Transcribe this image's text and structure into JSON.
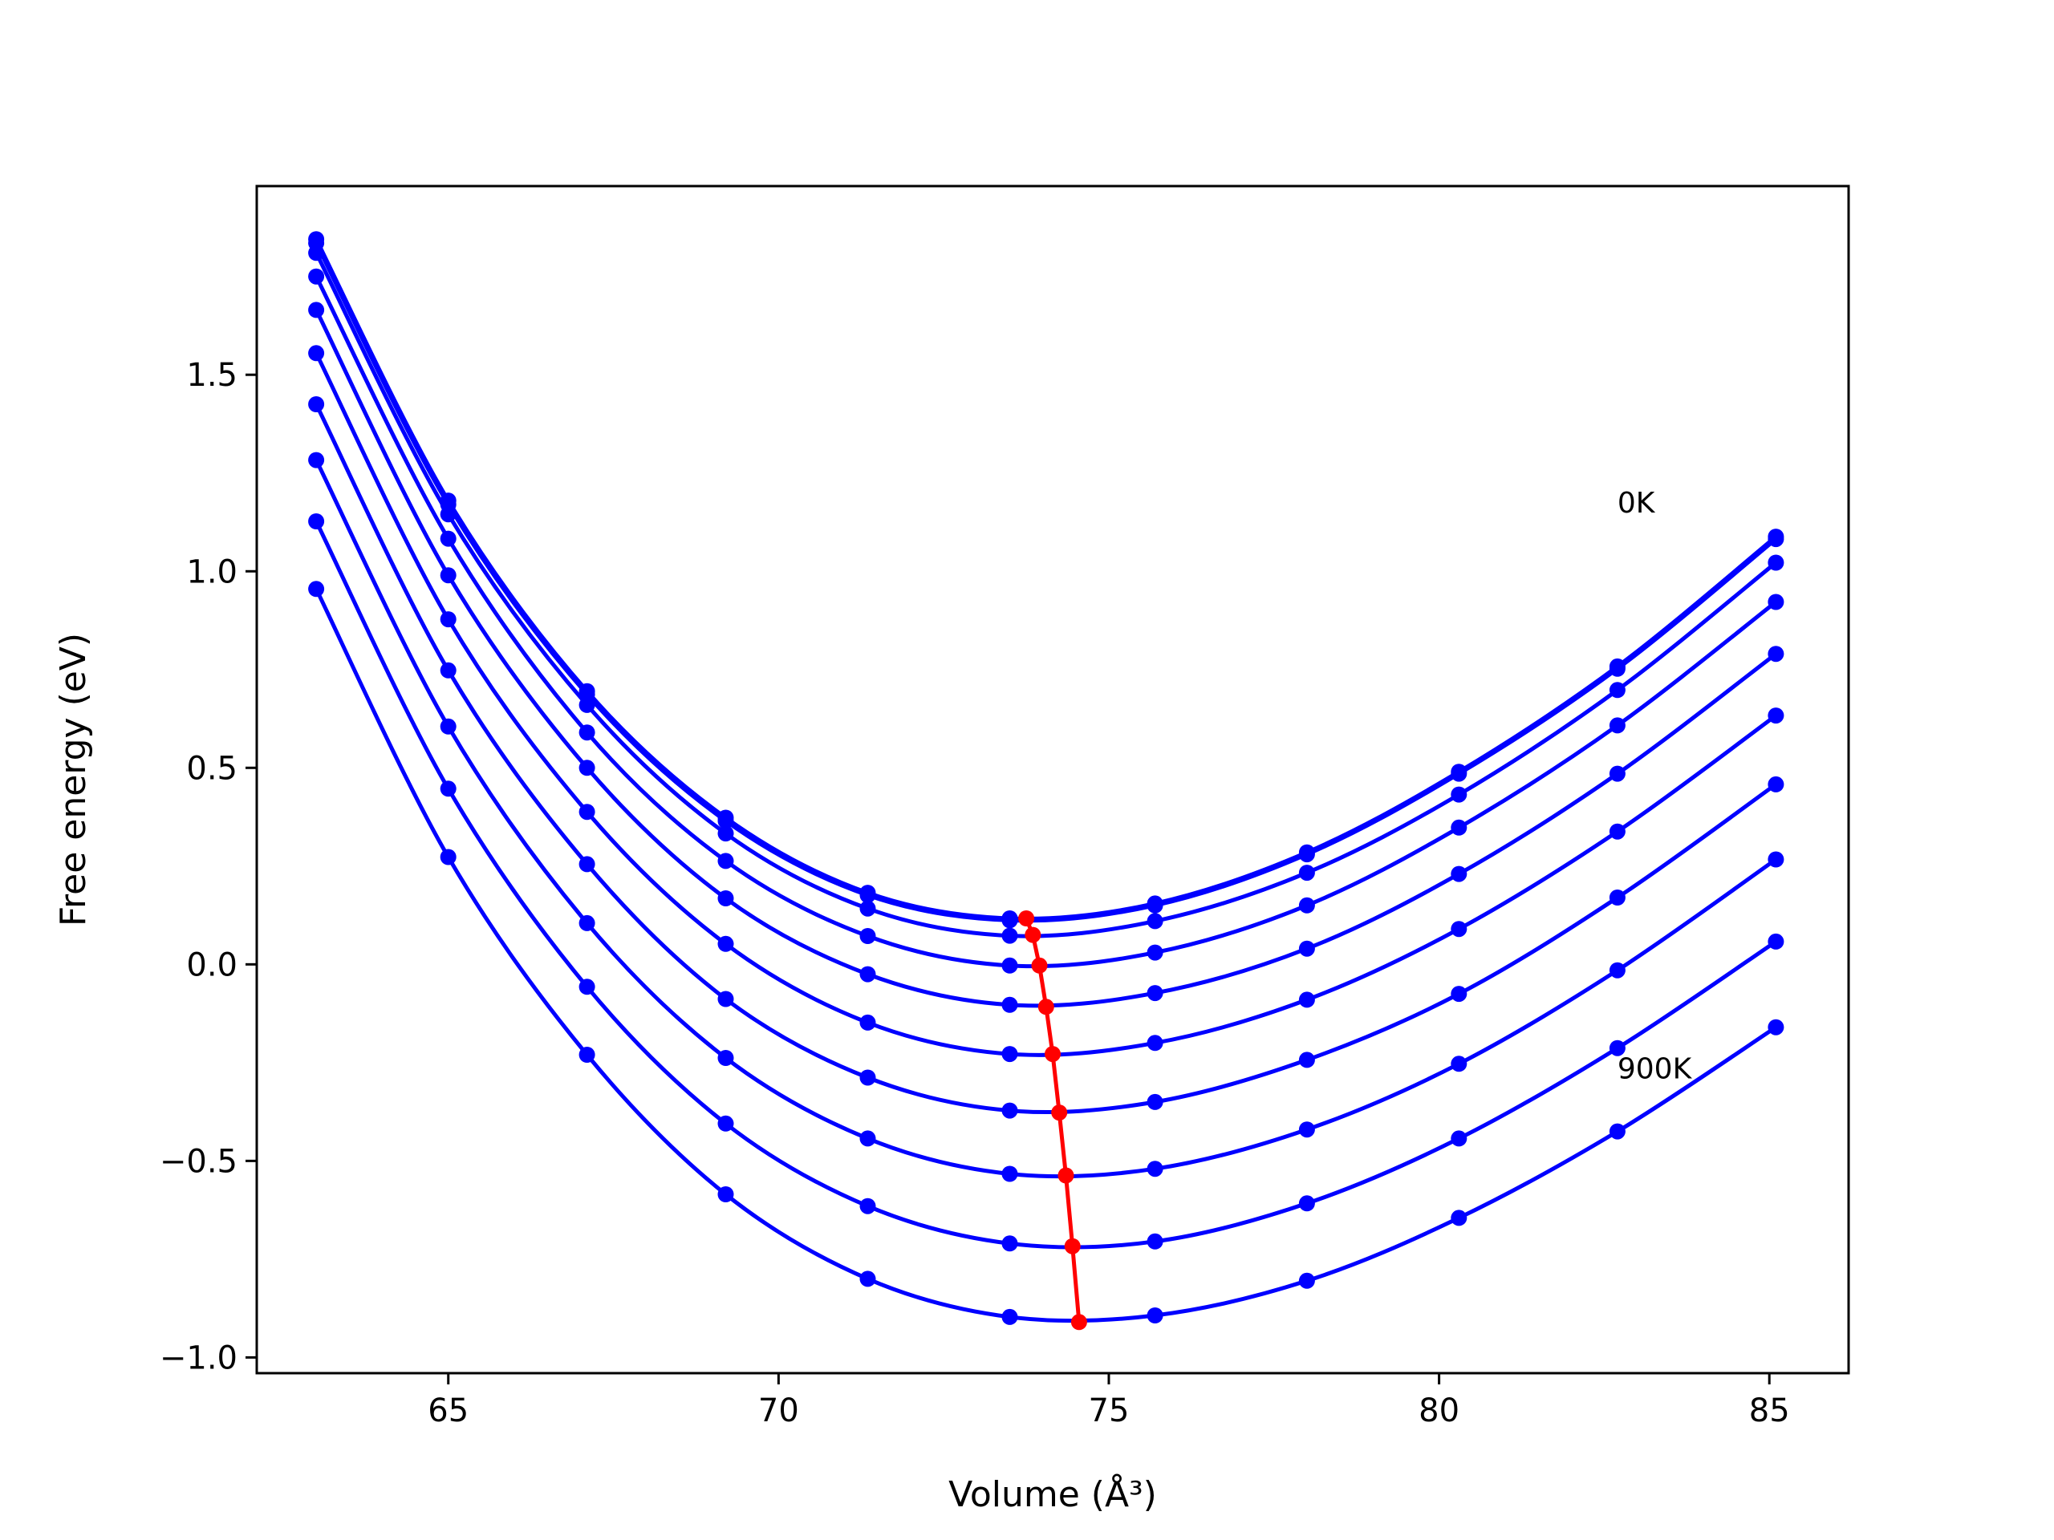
{
  "chart_data": {
    "type": "line",
    "xlabel": "Volume (Å³)",
    "ylabel": "Free energy (eV)",
    "xlim": [
      62.1,
      86.2
    ],
    "ylim": [
      -1.04,
      1.98
    ],
    "xticks": [
      65,
      70,
      75,
      80,
      85
    ],
    "yticks": [
      {
        "value": -1.0,
        "label": "−1.0"
      },
      {
        "value": -0.5,
        "label": "−0.5"
      },
      {
        "value": 0.0,
        "label": "0.0"
      },
      {
        "value": 0.5,
        "label": "0.5"
      },
      {
        "value": 1.0,
        "label": "1.0"
      },
      {
        "value": 1.5,
        "label": "1.5"
      }
    ],
    "grid": false,
    "legend": "none",
    "colors": {
      "curves": "#0000ff",
      "minimum_line": "#ff0000"
    },
    "annotations": [
      {
        "text": "0K",
        "x": 82.7,
        "y": 1.15
      },
      {
        "text": "900K",
        "x": 82.7,
        "y": -0.29
      }
    ],
    "volumes": [
      63.0,
      65.0,
      67.1,
      69.2,
      71.35,
      73.5,
      75.7,
      78.0,
      80.3,
      82.7,
      85.1
    ],
    "series": [
      {
        "values": [
          1.845,
          1.18,
          0.695,
          0.373,
          0.182,
          0.117,
          0.155,
          0.285,
          0.49,
          0.758,
          1.088
        ]
      },
      {
        "values": [
          1.835,
          1.17,
          0.687,
          0.365,
          0.176,
          0.112,
          0.15,
          0.28,
          0.485,
          0.752,
          1.082
        ]
      },
      {
        "values": [
          1.81,
          1.145,
          0.66,
          0.333,
          0.142,
          0.073,
          0.11,
          0.233,
          0.432,
          0.698,
          1.022
        ]
      },
      {
        "values": [
          1.75,
          1.083,
          0.59,
          0.263,
          0.072,
          -0.003,
          0.03,
          0.15,
          0.348,
          0.608,
          0.922
        ]
      },
      {
        "values": [
          1.665,
          0.99,
          0.5,
          0.168,
          -0.025,
          -0.103,
          -0.073,
          0.04,
          0.23,
          0.485,
          0.79
        ]
      },
      {
        "values": [
          1.555,
          0.878,
          0.388,
          0.052,
          -0.148,
          -0.228,
          -0.2,
          -0.09,
          0.09,
          0.338,
          0.633
        ]
      },
      {
        "values": [
          1.425,
          0.748,
          0.255,
          -0.088,
          -0.288,
          -0.372,
          -0.35,
          -0.243,
          -0.075,
          0.17,
          0.458
        ]
      },
      {
        "values": [
          1.283,
          0.605,
          0.105,
          -0.238,
          -0.443,
          -0.533,
          -0.52,
          -0.42,
          -0.253,
          -0.015,
          0.267
        ]
      },
      {
        "values": [
          1.127,
          0.447,
          -0.057,
          -0.405,
          -0.615,
          -0.71,
          -0.705,
          -0.608,
          -0.443,
          -0.213,
          0.058
        ]
      },
      {
        "values": [
          0.955,
          0.273,
          -0.23,
          -0.585,
          -0.8,
          -0.897,
          -0.893,
          -0.805,
          -0.645,
          -0.425,
          -0.16
        ]
      }
    ],
    "minimum_series": {
      "x": [
        73.75,
        73.85,
        73.95,
        74.05,
        74.15,
        74.25,
        74.35,
        74.45,
        74.55
      ],
      "y": [
        0.117,
        0.075,
        -0.003,
        -0.108,
        -0.228,
        -0.377,
        -0.537,
        -0.717,
        -0.91
      ]
    }
  }
}
